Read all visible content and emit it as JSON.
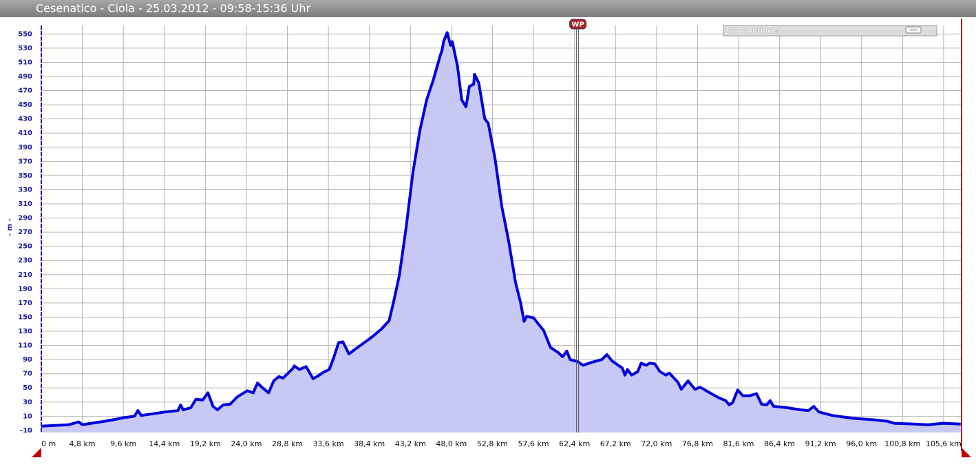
{
  "chart_data": {
    "type": "area",
    "title": "Cesenatico - Ciola - 25.03.2012 - 09:58-15:36 Uhr",
    "y_label": "- m -",
    "color": "#0000dd",
    "fill": "#c8c8f4",
    "grid": true,
    "annotations": [
      {
        "text": "WP",
        "x": 62.8
      }
    ],
    "x": [
      0,
      3.2,
      4.4,
      4.8,
      8,
      9.7,
      10.9,
      11.3,
      11.7,
      14.5,
      16,
      16.3,
      16.6,
      17.5,
      18.1,
      18.9,
      19.5,
      20.1,
      20.6,
      21.3,
      22.1,
      22.9,
      24.1,
      24.8,
      25.3,
      25.8,
      26.6,
      27.2,
      27.8,
      28.3,
      29.4,
      29.6,
      30.2,
      31,
      31.8,
      32.4,
      33,
      33.7,
      34.2,
      34.8,
      35.3,
      36,
      37,
      38.6,
      39.8,
      40.7,
      41.2,
      41.9,
      42.7,
      43.5,
      44.3,
      45.1,
      45.9,
      46.7,
      46.9,
      47.1,
      47.5,
      47.9,
      48.1,
      48.7,
      49.2,
      49.7,
      50.1,
      50.6,
      50.7,
      51.2,
      51.9,
      52.3,
      53.1,
      53.9,
      54.7,
      55.5,
      56.1,
      56.5,
      56.8,
      57.6,
      58.8,
      59.6,
      60.5,
      61,
      61.5,
      61.9,
      62.8,
      63.4,
      64.4,
      65.6,
      66.2,
      66.8,
      68,
      68.3,
      68.6,
      69.1,
      69.8,
      70.2,
      70.8,
      71.2,
      71.8,
      72.4,
      73.1,
      73.5,
      74.5,
      74.9,
      75.7,
      76.5,
      77.1,
      78.1,
      79.3,
      80.1,
      80.5,
      80.9,
      81.5,
      82.1,
      82.9,
      83.7,
      84.3,
      84.9,
      85.3,
      85.7,
      87.3,
      88.9,
      89.8,
      90.4,
      91,
      92.6,
      95,
      97.4,
      99,
      99.8,
      102.2,
      103.8,
      105.5,
      107.6
    ],
    "values": [
      -4,
      -2,
      2,
      -2,
      4,
      8,
      10,
      18,
      11,
      16,
      18,
      26,
      19,
      22,
      34,
      33,
      43,
      24,
      19,
      26,
      27,
      37,
      46,
      43,
      57,
      51,
      43,
      60,
      66,
      64,
      77,
      81,
      76,
      80,
      63,
      67,
      72,
      76,
      92,
      114,
      115,
      98,
      107,
      121,
      133,
      145,
      170,
      209,
      277,
      355,
      413,
      457,
      486,
      520,
      527,
      540,
      552,
      534,
      539,
      505,
      457,
      447,
      476,
      479,
      493,
      481,
      430,
      424,
      374,
      306,
      257,
      199,
      170,
      144,
      151,
      149,
      131,
      107,
      100,
      94,
      102,
      90,
      87,
      82,
      86,
      90,
      97,
      88,
      78,
      68,
      76,
      68,
      73,
      85,
      82,
      85,
      84,
      73,
      68,
      71,
      58,
      48,
      60,
      48,
      51,
      44,
      36,
      32,
      26,
      29,
      47,
      39,
      39,
      42,
      27,
      26,
      32,
      24,
      22,
      19,
      18,
      24,
      16,
      11,
      7,
      5,
      3,
      0,
      -1,
      -2,
      0,
      -1
    ],
    "xlim": [
      0,
      107.7
    ],
    "ylim": [
      -13,
      562
    ],
    "xticks": [
      {
        "value": 0,
        "label": "0 m"
      },
      {
        "value": 4.8,
        "label": "4,8 km"
      },
      {
        "value": 9.6,
        "label": "9,6 km"
      },
      {
        "value": 14.4,
        "label": "14,4 km"
      },
      {
        "value": 19.2,
        "label": "19,2 km"
      },
      {
        "value": 24,
        "label": "24,0 km"
      },
      {
        "value": 28.8,
        "label": "28,8 km"
      },
      {
        "value": 33.6,
        "label": "33,6 km"
      },
      {
        "value": 38.4,
        "label": "38,4 km"
      },
      {
        "value": 43.2,
        "label": "43,2 km"
      },
      {
        "value": 48,
        "label": "48,0 km"
      },
      {
        "value": 52.8,
        "label": "52,8 km"
      },
      {
        "value": 57.6,
        "label": "57,6 km"
      },
      {
        "value": 62.4,
        "label": "62,4 km"
      },
      {
        "value": 67.2,
        "label": "67,2 km"
      },
      {
        "value": 72,
        "label": "72,0 km"
      },
      {
        "value": 76.8,
        "label": "76,8 km"
      },
      {
        "value": 81.6,
        "label": "81,6 km"
      },
      {
        "value": 86.4,
        "label": "86,4 km"
      },
      {
        "value": 91.2,
        "label": "91,2 km"
      },
      {
        "value": 96,
        "label": "96,0 km"
      },
      {
        "value": 100.8,
        "label": "100,8 km"
      },
      {
        "value": 105.6,
        "label": "105,6 km"
      }
    ],
    "yticks": [
      -10,
      10,
      30,
      50,
      70,
      90,
      110,
      130,
      150,
      170,
      190,
      210,
      230,
      250,
      270,
      290,
      310,
      330,
      350,
      370,
      390,
      410,
      430,
      450,
      470,
      490,
      510,
      530,
      550
    ]
  },
  "ui": {
    "chart_options": "Chartoptionen"
  }
}
